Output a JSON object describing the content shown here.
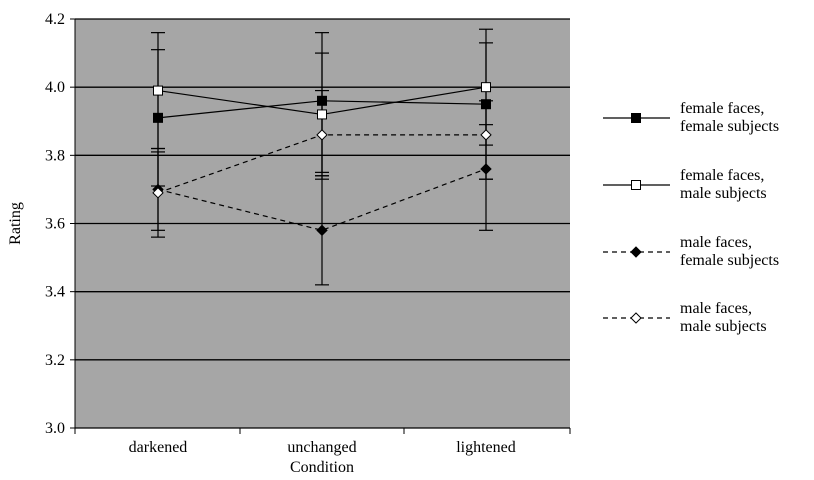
{
  "chart_data": {
    "type": "line",
    "xlabel": "Condition",
    "ylabel": "Rating",
    "categories": [
      "darkened",
      "unchanged",
      "lightened"
    ],
    "ylim": [
      3.0,
      4.2
    ],
    "yticks": [
      "3.0",
      "3.2",
      "3.4",
      "3.6",
      "3.8",
      "4.0",
      "4.2"
    ],
    "grid": "horizontal",
    "legend_position": "right",
    "plot_background": "#a6a6a6",
    "series": [
      {
        "name": "female faces,\nfemale subjects",
        "values": [
          3.91,
          3.96,
          3.95
        ],
        "error": [
          [
            3.71,
            4.11
          ],
          [
            3.74,
            4.16
          ],
          [
            3.73,
            4.17
          ]
        ],
        "marker": "filled-square",
        "line": "solid"
      },
      {
        "name": "female faces,\nmale subjects",
        "values": [
          3.99,
          3.92,
          4.0
        ],
        "error": [
          [
            3.82,
            4.16
          ],
          [
            3.75,
            4.1
          ],
          [
            3.83,
            4.13
          ]
        ],
        "marker": "open-square",
        "line": "solid"
      },
      {
        "name": "male faces,\nfemale subjects",
        "values": [
          3.7,
          3.58,
          3.76
        ],
        "error": [
          [
            3.56,
            3.82
          ],
          [
            3.42,
            3.74
          ],
          [
            3.58,
            3.89
          ]
        ],
        "marker": "filled-diamond",
        "line": "dashed"
      },
      {
        "name": "male faces,\nmale subjects",
        "values": [
          3.69,
          3.86,
          3.86
        ],
        "error": [
          [
            3.58,
            3.81
          ],
          [
            3.73,
            3.99
          ],
          [
            3.73,
            3.96
          ]
        ],
        "marker": "open-diamond",
        "line": "dashed"
      }
    ]
  }
}
